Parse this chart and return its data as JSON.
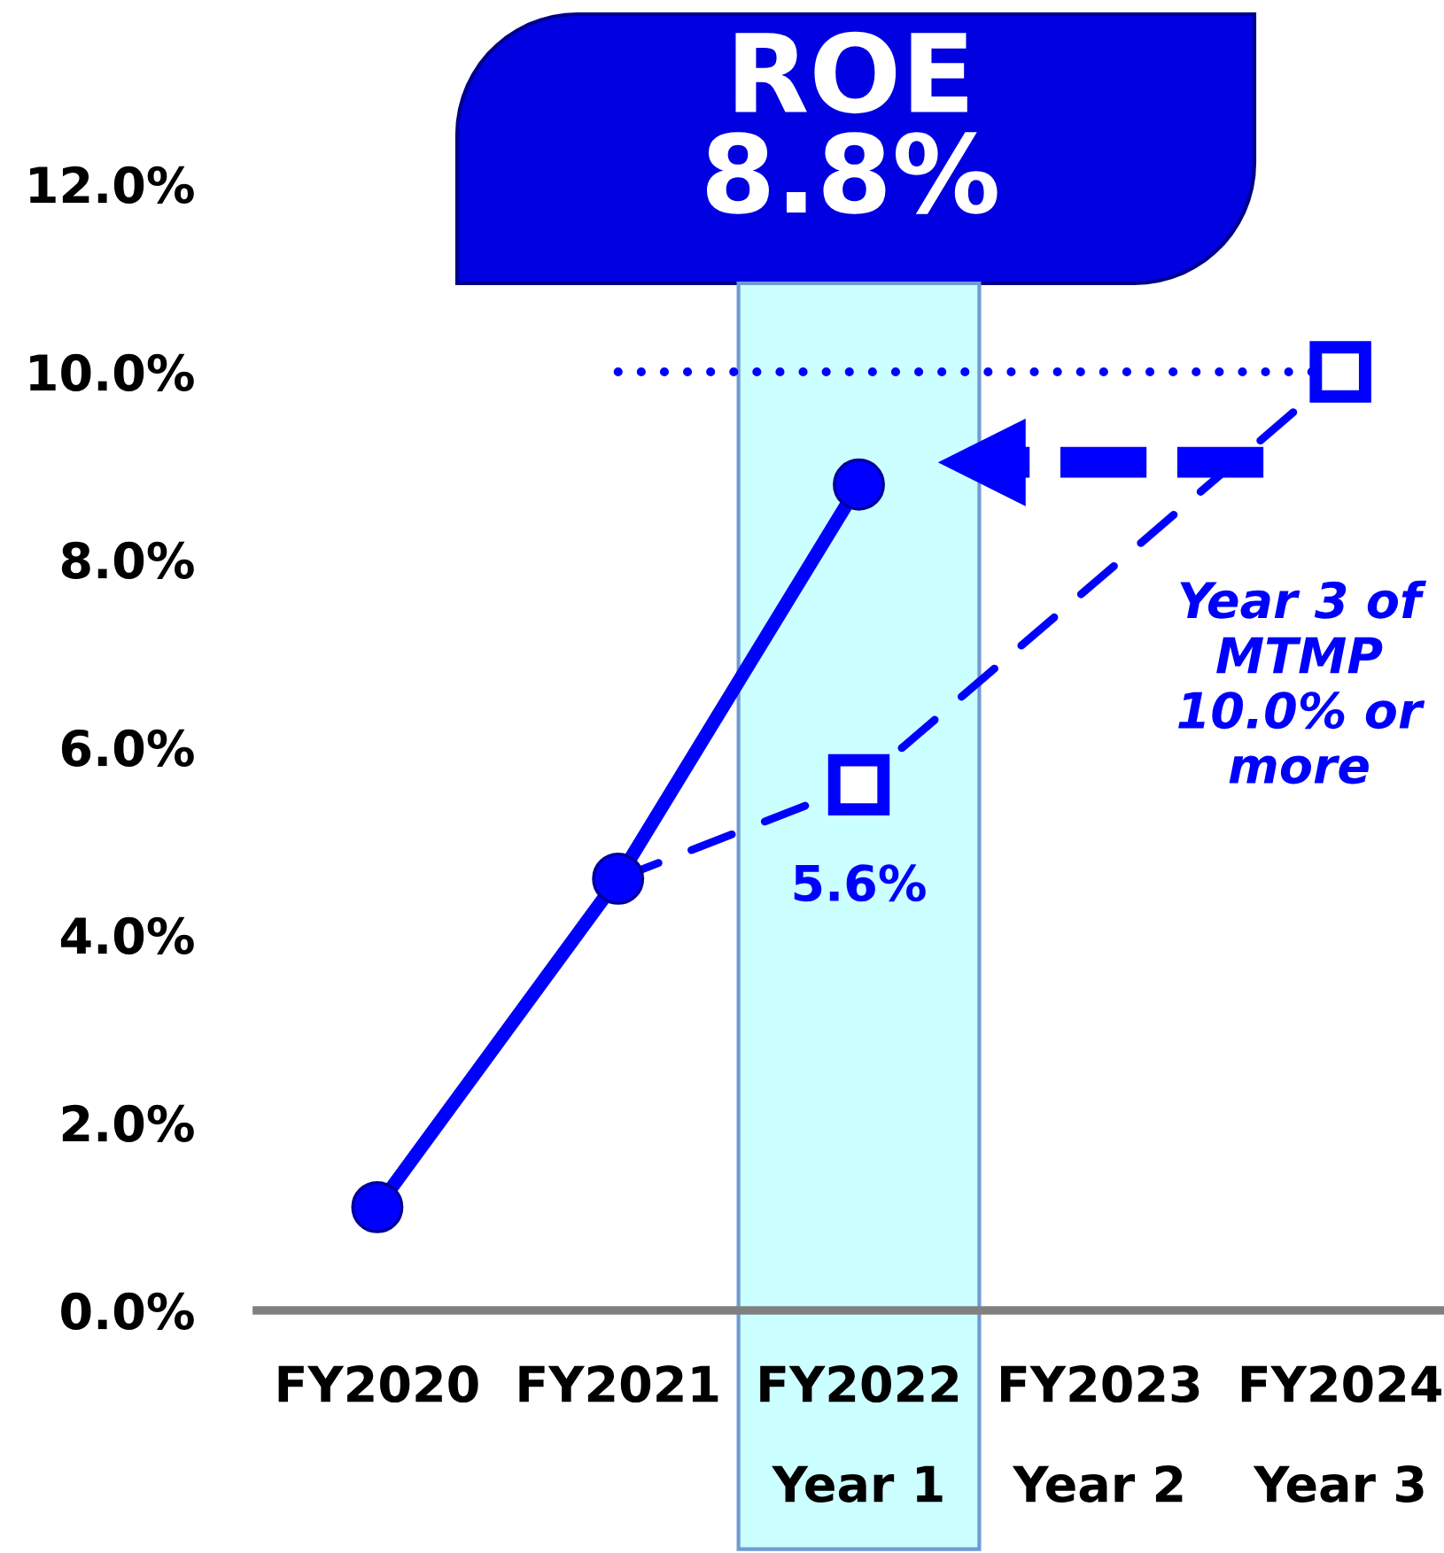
{
  "chart_data": {
    "type": "line",
    "title": "ROE\n8.8%",
    "categories": [
      "FY2020",
      "FY2021",
      "FY2022\nYear 1",
      "FY2023\nYear 2",
      "FY2024\nYear 3"
    ],
    "series": [
      {
        "color": "#0000ff",
        "values": [
          1.1,
          4.6,
          8.8,
          null,
          null
        ],
        "marker": "circle",
        "line_style": "solid"
      },
      {
        "color": "#0000ff",
        "x": [
          "FY2021",
          "FY2022\nYear 1",
          "FY2024\nYear 3"
        ],
        "values": [
          4.6,
          5.6,
          10.0
        ],
        "marker": "none",
        "line_style": "dashed"
      },
      {
        "type": "scatter",
        "color": "#0000ff",
        "x": [
          "FY2022\nYear 1",
          "FY2024\nYear 3"
        ],
        "values": [
          5.6,
          10.0
        ],
        "marker": "square",
        "value_labels": [
          "5.6%",
          null
        ]
      },
      {
        "color": "#0000ff",
        "x": [
          "FY2021",
          "FY2024\nYear 3"
        ],
        "values": [
          10.0,
          10.0
        ],
        "marker": "none",
        "line_style": "dotted"
      }
    ],
    "ylim": [
      0,
      12
    ],
    "yticks": [
      {
        "value": 0,
        "label": "0.0%"
      },
      {
        "value": 2,
        "label": "2.0%"
      },
      {
        "value": 4,
        "label": "4.0%"
      },
      {
        "value": 6,
        "label": "6.0%"
      },
      {
        "value": 8,
        "label": "8.0%"
      },
      {
        "value": 10,
        "label": "10.0%"
      },
      {
        "value": 12,
        "label": "12.0%"
      }
    ],
    "bands": [
      {
        "axis": "x",
        "from": "FY2022\nYear 1",
        "to": "FY2022\nYear 1",
        "color": "#ccffff"
      }
    ],
    "annotations": [
      "Year 3 of\nMTMP\n10.0% or\nmore"
    ]
  }
}
